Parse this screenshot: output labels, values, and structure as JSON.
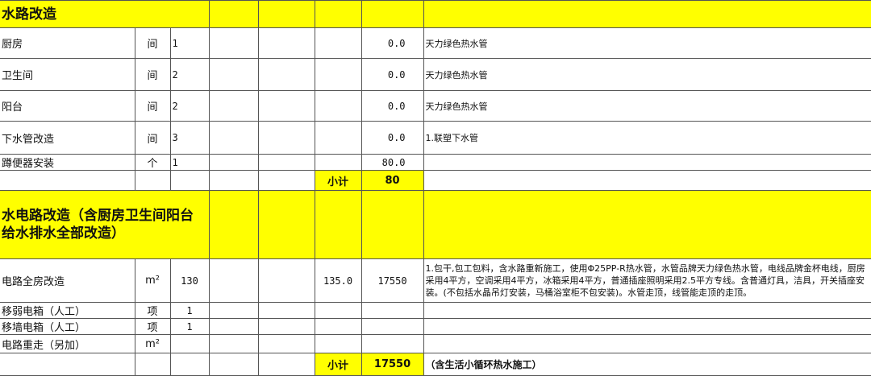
{
  "sections": [
    {
      "title": "水路改造",
      "rows": [
        {
          "name": "厨房",
          "unit": "间",
          "qty": "1",
          "price": "",
          "total": "0.0",
          "note": "天力绿色热水管"
        },
        {
          "name": "卫生间",
          "unit": "间",
          "qty": "2",
          "price": "",
          "total": "0.0",
          "note": "天力绿色热水管"
        },
        {
          "name": "阳台",
          "unit": "间",
          "qty": "2",
          "price": "",
          "total": "0.0",
          "note": "天力绿色热水管"
        },
        {
          "name": "下水管改造",
          "unit": "间",
          "qty": "3",
          "price": "",
          "total": "0.0",
          "note": "1.联塑下水管"
        },
        {
          "name": "蹲便器安装",
          "unit": "个",
          "qty": "1",
          "price": "",
          "total": "80.0",
          "note": ""
        }
      ],
      "subtotal_label": "小计",
      "subtotal": "80",
      "subtotal_note": ""
    },
    {
      "title": "水电路改造（含厨房卫生间阳台给水排水全部改造）",
      "rows": [
        {
          "name": "电路全房改造",
          "unit": "m²",
          "qty": "130",
          "price": "135.0",
          "total": "17550",
          "note": "1.包干,包工包料，含水路重新施工，使用Φ25PP-R热水管，水管品牌天力绿色热水管，电线品牌金杯电线，厨房采用4平方，空调采用4平方，冰箱采用4平方，普通插座照明采用2.5平方专线。含普通灯具，洁具，开关插座安装。(不包括水晶吊灯安装，马桶浴室柜不包安装)。水管走顶，线管能走顶的走顶。"
        },
        {
          "name": "移弱电箱（人工）",
          "unit": "项",
          "qty": "1",
          "price": "",
          "total": "",
          "note": ""
        },
        {
          "name": "移墙电箱（人工）",
          "unit": "项",
          "qty": "1",
          "price": "",
          "total": "",
          "note": ""
        },
        {
          "name": "电路重走（另加）",
          "unit": "m²",
          "qty": "",
          "price": "",
          "total": "",
          "note": ""
        }
      ],
      "subtotal_label": "小计",
      "subtotal": "17550",
      "subtotal_note": "（含生活小循环热水施工）"
    }
  ],
  "colors": {
    "highlight": "#ffff00"
  }
}
